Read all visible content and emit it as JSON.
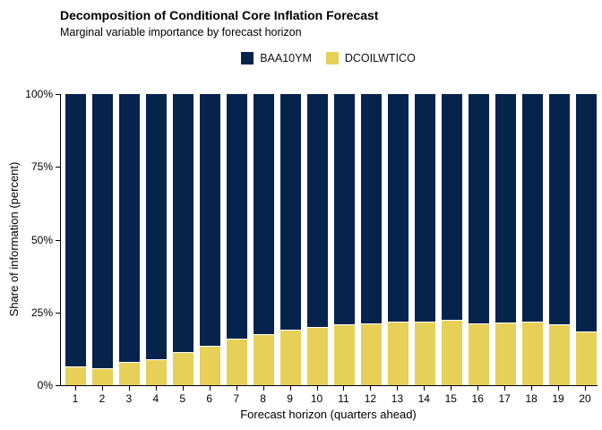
{
  "chart_data": {
    "type": "bar",
    "variant": "stacked-percent",
    "title": "Decomposition of Conditional Core Inflation Forecast",
    "subtitle": "Marginal variable importance by forecast horizon",
    "xlabel": "Forecast horizon (quarters ahead)",
    "ylabel": "Share of information (percent)",
    "categories": [
      "1",
      "2",
      "3",
      "4",
      "5",
      "6",
      "7",
      "8",
      "9",
      "10",
      "11",
      "12",
      "13",
      "14",
      "15",
      "16",
      "17",
      "18",
      "19",
      "20"
    ],
    "series": [
      {
        "name": "BAA10YM",
        "color": "#06234c",
        "values": [
          93.5,
          94.0,
          92.0,
          91.0,
          88.5,
          86.5,
          84.0,
          82.5,
          81.0,
          80.0,
          79.0,
          78.8,
          78.0,
          78.2,
          77.6,
          78.8,
          78.5,
          78.0,
          79.2,
          81.6
        ]
      },
      {
        "name": "DCOILWTICO",
        "color": "#e7d058",
        "values": [
          6.5,
          6.0,
          8.0,
          9.0,
          11.5,
          13.5,
          16.0,
          17.5,
          19.0,
          20.0,
          21.0,
          21.2,
          22.0,
          21.8,
          22.4,
          21.2,
          21.5,
          22.0,
          20.8,
          18.4
        ]
      }
    ],
    "yticks": [
      {
        "label": "0%",
        "value": 0
      },
      {
        "label": "25%",
        "value": 25
      },
      {
        "label": "50%",
        "value": 50
      },
      {
        "label": "75%",
        "value": 75
      },
      {
        "label": "100%",
        "value": 100
      }
    ],
    "ylim": [
      0,
      100
    ],
    "grid": false,
    "legend_position": "top-center",
    "axis_color": "#000000",
    "background_color": "#ffffff"
  }
}
